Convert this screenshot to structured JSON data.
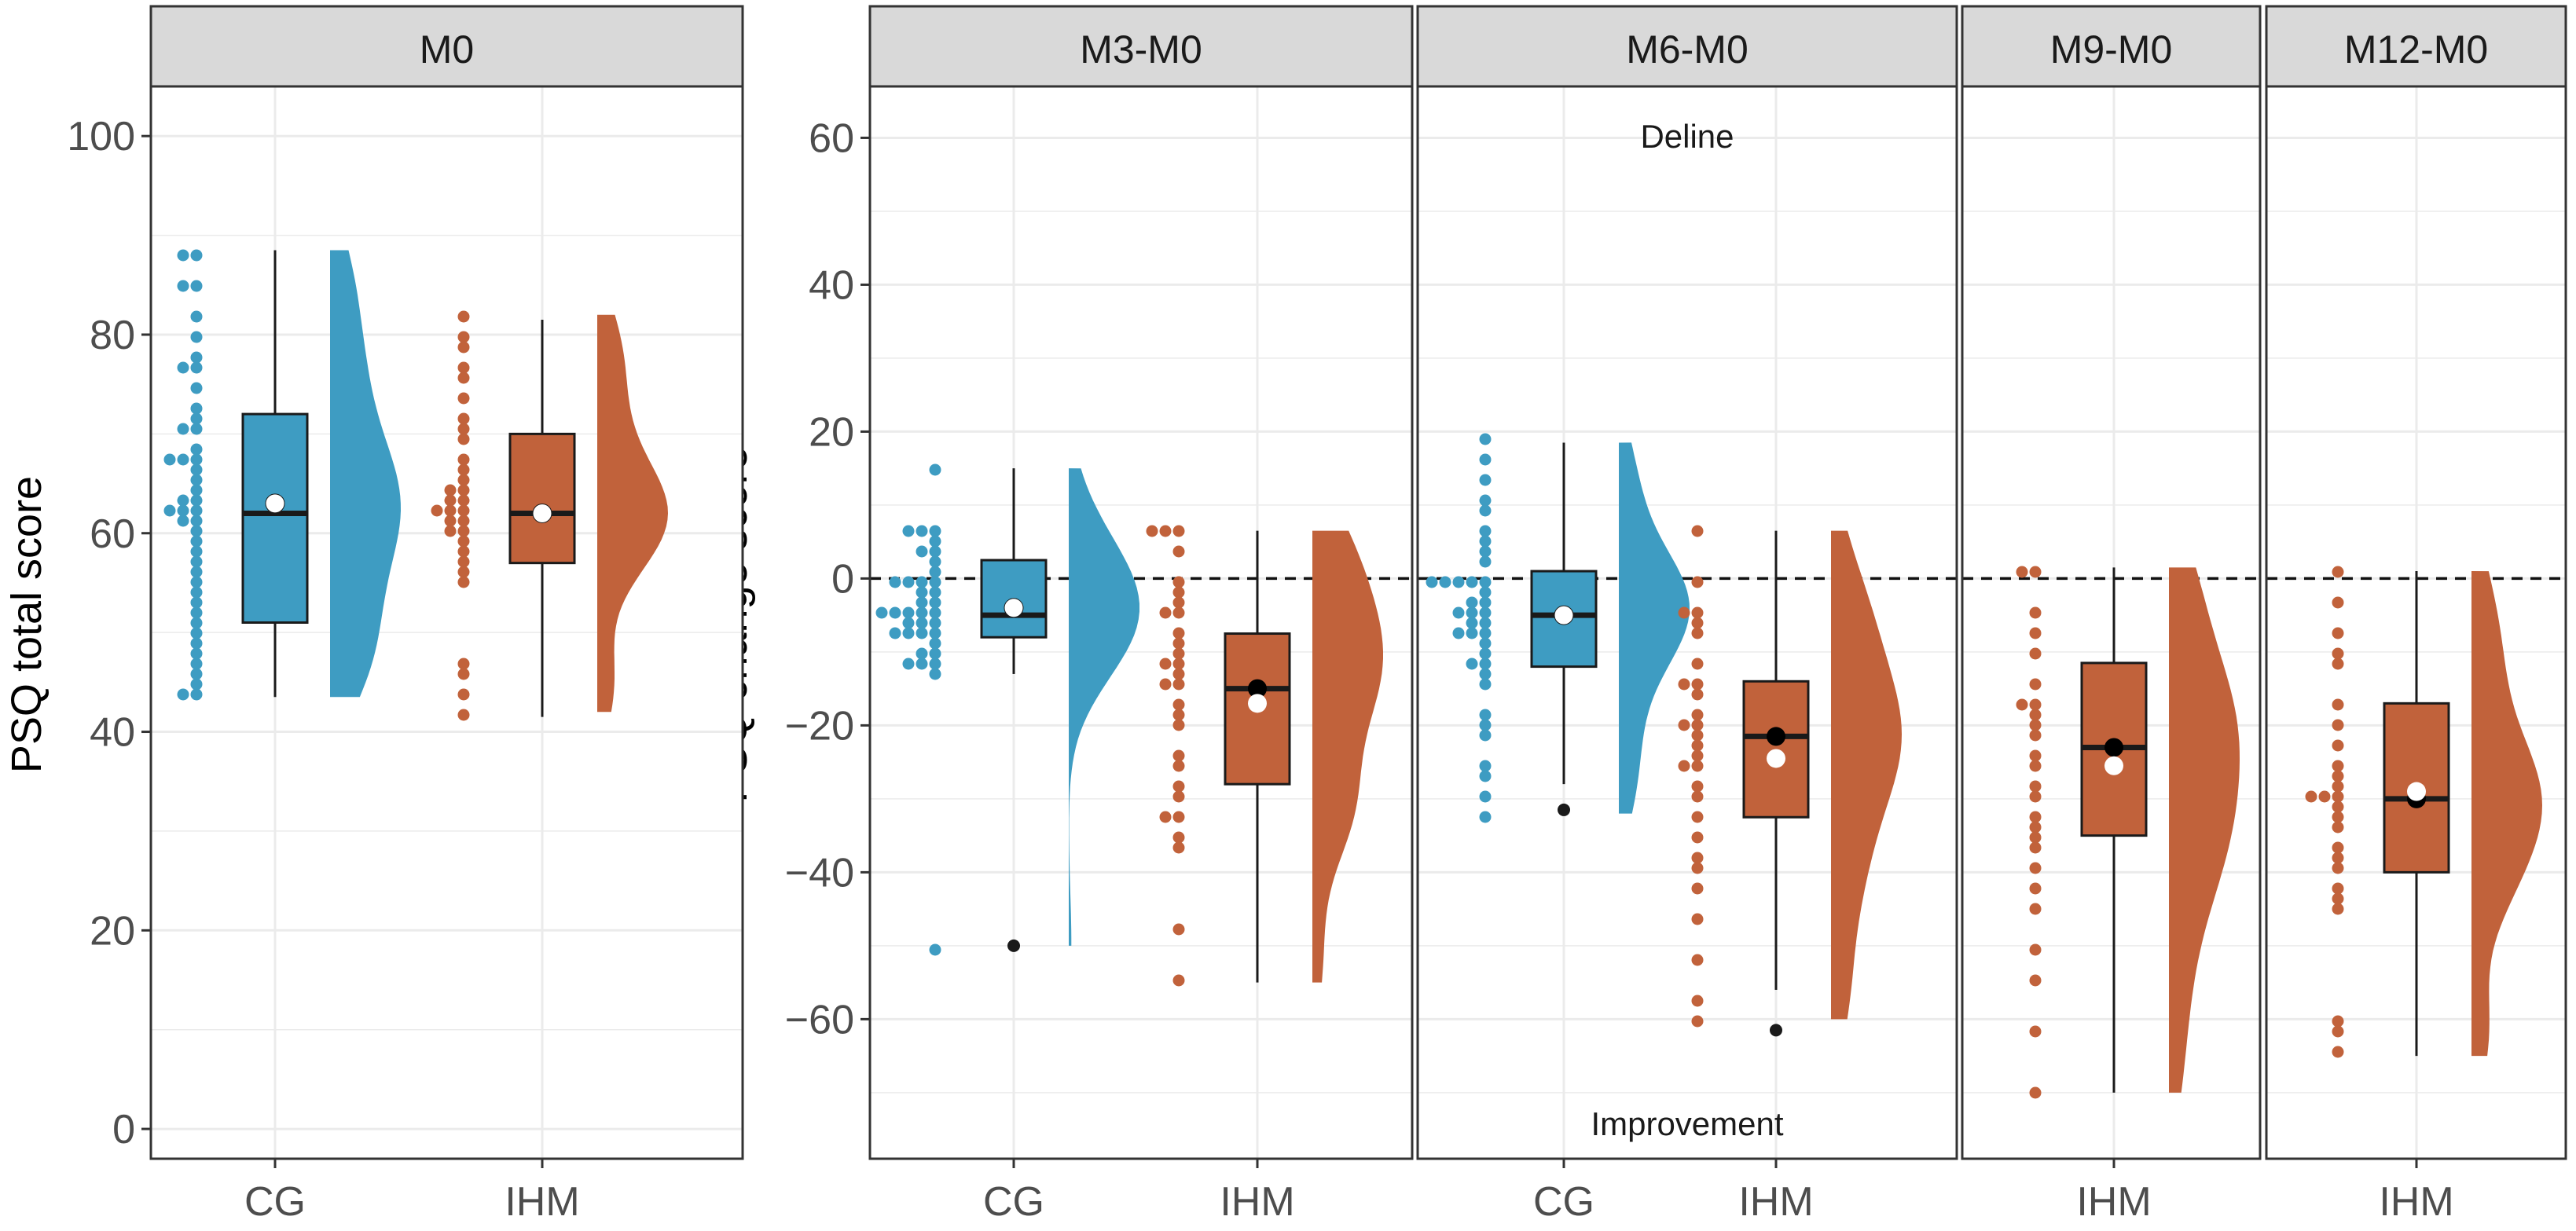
{
  "colors": {
    "CG": "#3E9CC2",
    "IHM": "#C1623B",
    "mean": "#ffffff",
    "median_dot": "#000000",
    "outlier": "#1a1a1a"
  },
  "chart_data": [
    {
      "type": "raincloud",
      "facet": "M0",
      "ylabel": "PSQ total score",
      "ylim": [
        -3,
        105
      ],
      "yticks": [
        0,
        20,
        40,
        60,
        80,
        100
      ],
      "groups": [
        {
          "label": "CG",
          "color_key": "CG",
          "q1": 51,
          "median": 62,
          "q3": 72,
          "whisker_low": 43.5,
          "whisker_high": 88.5,
          "mean": 63,
          "outliers": [],
          "points": [
            88.5,
            87.5,
            85,
            85,
            82,
            80,
            78,
            77,
            77,
            75,
            73,
            72,
            71,
            70,
            68,
            67,
            67,
            67,
            66,
            65,
            64,
            63,
            63,
            62,
            62,
            62,
            61,
            61,
            60,
            59,
            58,
            57,
            56,
            55,
            54,
            53,
            52,
            51,
            50,
            49,
            48,
            47,
            46,
            45,
            44,
            43.5
          ]
        },
        {
          "label": "IHM",
          "color_key": "IHM",
          "q1": 57,
          "median": 62,
          "q3": 70,
          "whisker_low": 41.5,
          "whisker_high": 81.5,
          "mean": 62,
          "outliers": [],
          "points": [
            82,
            80,
            79,
            77,
            76,
            74,
            72,
            70,
            69,
            67,
            66,
            65,
            64,
            64,
            63,
            63,
            62,
            62,
            62,
            61,
            61,
            60,
            60,
            59,
            58,
            57,
            56,
            55,
            47,
            46,
            44,
            42
          ]
        }
      ]
    },
    {
      "type": "raincloud",
      "facet": "M3-M0",
      "ylabel": "PSQ change score",
      "ylim": [
        -79,
        67
      ],
      "yticks": [
        -60,
        -40,
        -20,
        0,
        20,
        40,
        60
      ],
      "reference_line": 0,
      "groups": [
        {
          "label": "CG",
          "color_key": "CG",
          "q1": -8,
          "median": -5,
          "q3": 2.5,
          "whisker_low": -13,
          "whisker_high": 15,
          "mean": -4,
          "outliers": [
            -50
          ],
          "points": [
            15,
            7,
            7,
            6,
            5,
            4,
            3,
            2,
            1,
            0,
            0,
            0,
            -1,
            -2,
            -2,
            -3,
            -3,
            -4,
            -4,
            -5,
            -5,
            -5,
            -6,
            -6,
            -6,
            -7,
            -7,
            -8,
            -8,
            -9,
            -10,
            -10,
            -11,
            -12,
            -12,
            -13,
            -50
          ]
        },
        {
          "label": "IHM",
          "color_key": "IHM",
          "q1": -28,
          "median": -15,
          "q3": -7.5,
          "whisker_low": -55,
          "whisker_high": 6.5,
          "mean": -17,
          "mean_black": -15,
          "outliers": [],
          "points": [
            6.5,
            6.5,
            6.5,
            3,
            0,
            -2,
            -3,
            -4,
            -5,
            -7,
            -9,
            -10,
            -12,
            -12,
            -13,
            -14,
            -15,
            -17,
            -18,
            -20,
            -24,
            -26,
            -28,
            -30,
            -32,
            -33,
            -35,
            -36,
            -48,
            -55
          ]
        }
      ]
    },
    {
      "type": "raincloud",
      "facet": "M6-M0",
      "annotations": {
        "top": "Deline",
        "bottom": "Improvement"
      },
      "reference_line": 0,
      "groups": [
        {
          "label": "CG",
          "color_key": "CG",
          "q1": -12,
          "median": -5,
          "q3": 1,
          "whisker_low": -28,
          "whisker_high": 18.5,
          "mean": -5,
          "outliers": [
            -31.5
          ],
          "points": [
            18.5,
            16,
            13,
            10,
            9,
            6,
            5,
            3,
            2,
            0,
            0,
            0,
            -1,
            -1,
            -2,
            -3,
            -3,
            -4,
            -4,
            -5,
            -6,
            -6,
            -7,
            -8,
            -8,
            -9,
            -10,
            -11,
            -12,
            -13,
            -15,
            -18,
            -20,
            -22,
            -25,
            -27,
            -30,
            -32
          ]
        },
        {
          "label": "IHM",
          "color_key": "IHM",
          "q1": -32.5,
          "median": -21.5,
          "q3": -14,
          "whisker_low": -56,
          "whisker_high": 6.5,
          "mean": -24.5,
          "mean_black": -21.5,
          "outliers": [
            -61.5
          ],
          "points": [
            6.5,
            0,
            -4,
            -4,
            -6,
            -8,
            -12,
            -14,
            -15,
            -16,
            -18,
            -20,
            -20,
            -22,
            -23,
            -24,
            -25,
            -26,
            -28,
            -30,
            -32,
            -35,
            -38,
            -40,
            -42,
            -47,
            -52,
            -58,
            -60
          ]
        }
      ]
    },
    {
      "type": "raincloud",
      "facet": "M9-M0",
      "reference_line": 0,
      "groups": [
        {
          "label": "IHM",
          "color_key": "IHM",
          "q1": -35,
          "median": -23,
          "q3": -11.5,
          "whisker_low": -70,
          "whisker_high": 1.5,
          "mean": -25.5,
          "mean_black": -23,
          "outliers": [],
          "points": [
            1.5,
            1.5,
            -4,
            -8,
            -10,
            -15,
            -17,
            -17,
            -18,
            -20,
            -22,
            -24,
            -26,
            -28,
            -30,
            -32,
            -34,
            -35,
            -37,
            -40,
            -42,
            -45,
            -50,
            -55,
            -62,
            -70
          ]
        }
      ]
    },
    {
      "type": "raincloud",
      "facet": "M12-M0",
      "reference_line": 0,
      "groups": [
        {
          "label": "IHM",
          "color_key": "IHM",
          "q1": -40,
          "median": -30,
          "q3": -17,
          "whisker_low": -65,
          "whisker_high": 1,
          "mean": -29,
          "mean_black": -30,
          "outliers": [],
          "points": [
            1,
            -3,
            -8,
            -10,
            -12,
            -17,
            -20,
            -23,
            -25,
            -27,
            -28,
            -29,
            -30,
            -30,
            -31,
            -32,
            -34,
            -36,
            -38,
            -40,
            -42,
            -43,
            -45,
            -60,
            -61,
            -65
          ]
        }
      ]
    }
  ]
}
